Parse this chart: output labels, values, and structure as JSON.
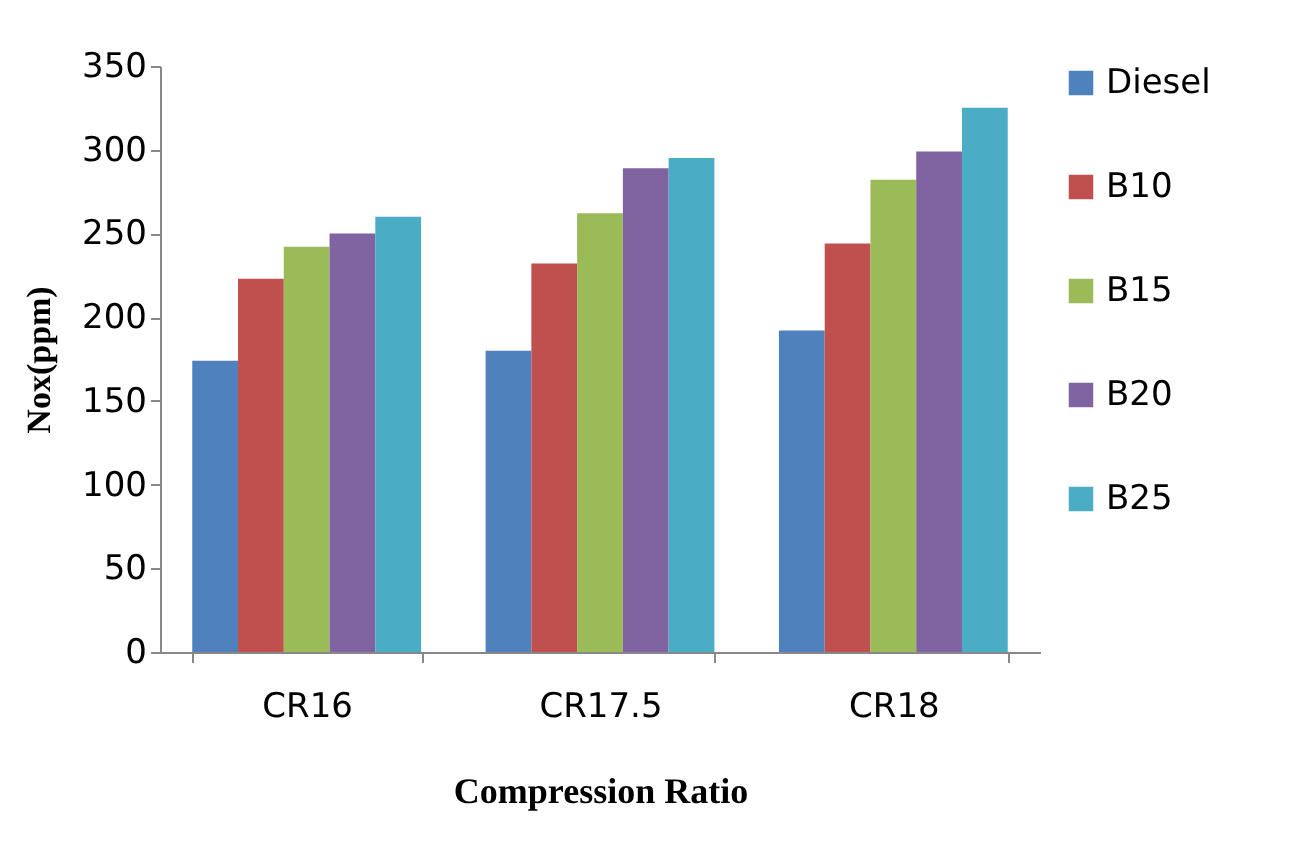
{
  "chart_data": {
    "type": "bar",
    "xlabel": "Compression Ratio",
    "ylabel": "Nox(ppm)",
    "categories": [
      "CR16",
      "CR17.5",
      "CR18"
    ],
    "series": [
      {
        "name": "Diesel",
        "color": "#4f81bd",
        "values": [
          174,
          180,
          192
        ]
      },
      {
        "name": "B10",
        "color": "#c0504d",
        "values": [
          223,
          232,
          244
        ]
      },
      {
        "name": "B15",
        "color": "#9bbb59",
        "values": [
          242,
          262,
          282
        ]
      },
      {
        "name": "B20",
        "color": "#8064a2",
        "values": [
          250,
          289,
          299
        ]
      },
      {
        "name": "B25",
        "color": "#4bacc6",
        "values": [
          260,
          295,
          325
        ]
      }
    ],
    "ylim": [
      0,
      350
    ],
    "yticks": [
      0,
      50,
      100,
      150,
      200,
      250,
      300,
      350
    ],
    "grid": false,
    "legend": "right"
  }
}
